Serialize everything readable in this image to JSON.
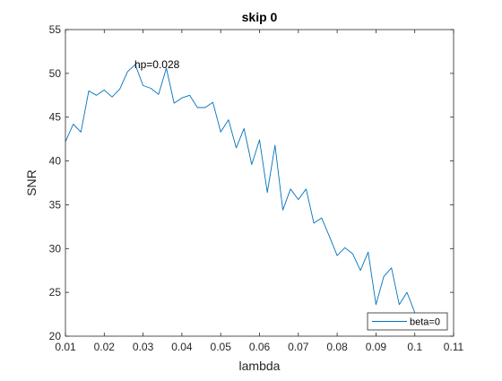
{
  "chart_data": {
    "type": "line",
    "title": "skip 0",
    "xlabel": "lambda",
    "ylabel": "SNR",
    "xlim": [
      0.01,
      0.11
    ],
    "ylim": [
      20,
      55
    ],
    "xticks": [
      "0.01",
      "0.02",
      "0.03",
      "0.04",
      "0.05",
      "0.06",
      "0.07",
      "0.08",
      "0.09",
      "0.1",
      "0.11"
    ],
    "yticks": [
      "20",
      "25",
      "30",
      "35",
      "40",
      "45",
      "50",
      "55"
    ],
    "grid": false,
    "legend_position": "bottom-right",
    "series": [
      {
        "name": "beta=0",
        "color": "#0072BD",
        "x": [
          0.01,
          0.012,
          0.014,
          0.016,
          0.018,
          0.02,
          0.022,
          0.024,
          0.026,
          0.028,
          0.03,
          0.032,
          0.034,
          0.036,
          0.038,
          0.04,
          0.042,
          0.044,
          0.046,
          0.048,
          0.05,
          0.052,
          0.054,
          0.056,
          0.058,
          0.06,
          0.062,
          0.064,
          0.066,
          0.068,
          0.07,
          0.072,
          0.074,
          0.076,
          0.078,
          0.08,
          0.082,
          0.084,
          0.086,
          0.088,
          0.09,
          0.092,
          0.094,
          0.096,
          0.098,
          0.1
        ],
        "y": [
          42.2,
          44.2,
          43.3,
          48.0,
          47.5,
          48.1,
          47.3,
          48.2,
          50.2,
          51.0,
          48.6,
          48.3,
          47.6,
          50.6,
          46.6,
          47.2,
          47.5,
          46.1,
          46.1,
          46.7,
          43.3,
          44.7,
          41.5,
          43.7,
          39.6,
          42.4,
          36.4,
          41.8,
          34.4,
          36.8,
          35.6,
          36.8,
          32.9,
          33.5,
          31.4,
          29.2,
          30.1,
          29.4,
          27.5,
          29.6,
          23.6,
          26.8,
          27.8,
          23.6,
          25.0,
          22.7
        ]
      }
    ],
    "annotations": [
      {
        "text": "hp=0.028",
        "x": 0.028,
        "y": 51.0
      }
    ]
  }
}
